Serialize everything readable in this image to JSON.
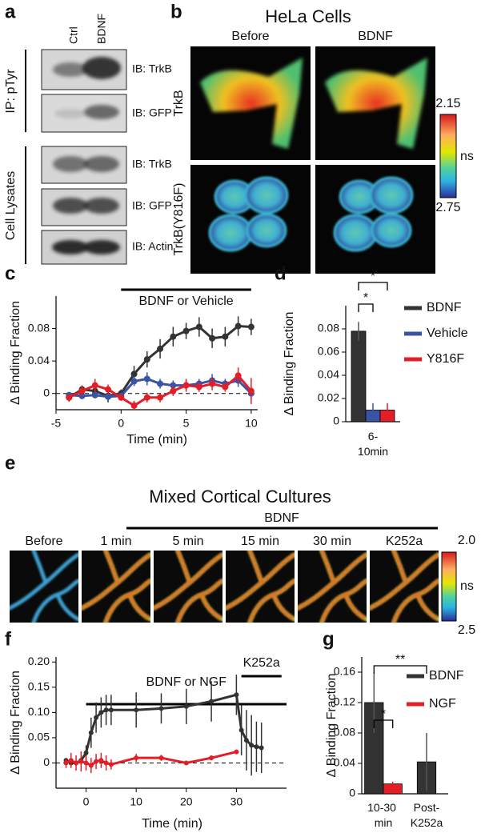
{
  "panel_labels": [
    "a",
    "b",
    "c",
    "d",
    "e",
    "f",
    "g"
  ],
  "blot": {
    "lanes": [
      "Ctrl",
      "BDNF"
    ],
    "groups": [
      "IP: pTyr",
      "Cell Lysates"
    ],
    "antibodies": [
      "IB: TrkB",
      "IB: GFP",
      "IB: TrkB",
      "IB: GFP",
      "IB: Actin"
    ]
  },
  "hela": {
    "title": "HeLa Cells",
    "conditions": [
      "Before",
      "BDNF"
    ],
    "constructs": [
      "TrkB",
      "TrkB(Y816F)"
    ],
    "scale": {
      "max": "2.15",
      "min": "2.75",
      "unit": "ns"
    }
  },
  "cortical": {
    "title": "Mixed Cortical Cultures",
    "treatment": "BDNF",
    "timepoints": [
      "Before",
      "1 min",
      "5 min",
      "15 min",
      "30 min",
      "K252a"
    ],
    "scale": {
      "max": "2.0",
      "min": "2.5",
      "unit": "ns"
    }
  },
  "chart_data": [
    {
      "type": "line",
      "xlabel": "Time (min)",
      "ylabel": "Δ Binding Fraction",
      "x": [
        -4,
        -3,
        -2,
        -1,
        0,
        1,
        2,
        3,
        4,
        5,
        6,
        7,
        8,
        9,
        10
      ],
      "xlim": [
        -5,
        10.5
      ],
      "xticks": [
        -5,
        0,
        5,
        10
      ],
      "ylim": [
        -0.02,
        0.12
      ],
      "yticks": [
        0,
        0.04,
        0.08
      ],
      "zero_line": true,
      "annotations": [
        {
          "text": "BDNF or Vehicle",
          "x": [
            0,
            10
          ]
        }
      ],
      "series": [
        {
          "color": "#333333",
          "values": [
            -0.005,
            0.005,
            0.003,
            -0.003,
            0,
            0.024,
            0.042,
            0.055,
            0.07,
            0.077,
            0.082,
            0.068,
            0.07,
            0.083,
            0.082
          ],
          "errors": [
            0.005,
            0.005,
            0.005,
            0.008,
            0.005,
            0.01,
            0.01,
            0.012,
            0.012,
            0.01,
            0.012,
            0.012,
            0.012,
            0.012,
            0.01
          ]
        },
        {
          "color": "#3a53a4",
          "values": [
            -0.002,
            -0.003,
            -0.002,
            -0.004,
            -0.003,
            0.015,
            0.018,
            0.012,
            0.01,
            0.01,
            0.012,
            0.016,
            0.012,
            0.016,
            0
          ],
          "errors": [
            0.004,
            0.004,
            0.004,
            0.004,
            0.004,
            0.006,
            0.008,
            0.006,
            0.006,
            0.006,
            0.006,
            0.008,
            0.006,
            0.008,
            0.006
          ]
        },
        {
          "color": "#e41e26",
          "values": [
            -0.005,
            0.003,
            0.01,
            0.005,
            -0.005,
            -0.015,
            -0.005,
            -0.005,
            0.003,
            0.01,
            0.008,
            0.012,
            0.008,
            0.022,
            0.003
          ],
          "errors": [
            0.004,
            0.006,
            0.008,
            0.006,
            0.004,
            0.006,
            0.006,
            0.006,
            0.006,
            0.008,
            0.006,
            0.008,
            0.006,
            0.01,
            0.016
          ]
        }
      ]
    },
    {
      "type": "bar",
      "ylabel": "Δ Binding Fraction",
      "categories": [
        "6-10min"
      ],
      "ylim": [
        0,
        0.1
      ],
      "yticks": [
        0,
        0.02,
        0.04,
        0.06,
        0.08
      ],
      "legend": "right",
      "series": [
        {
          "name": "BDNF",
          "color": "#333333",
          "values": [
            0.078
          ],
          "errors": [
            0.008
          ]
        },
        {
          "name": "Vehicle",
          "color": "#3a53a4",
          "values": [
            0.01
          ],
          "errors": [
            0.006
          ]
        },
        {
          "name": "Y816F",
          "color": "#e41e26",
          "values": [
            0.01
          ],
          "errors": [
            0.006
          ]
        }
      ],
      "significance": [
        {
          "label": "*",
          "between": [
            [
              0,
              0
            ],
            [
              0,
              1
            ]
          ]
        },
        {
          "label": "*",
          "between": [
            [
              0,
              0
            ],
            [
              0,
              2
            ]
          ]
        }
      ]
    },
    {
      "type": "line",
      "xlabel": "Time (min)",
      "ylabel": "Δ Binding Fraction",
      "x": [
        -4,
        -3,
        -2,
        -1,
        0,
        1,
        2,
        3,
        4,
        5,
        10,
        15,
        20,
        25,
        30,
        31,
        32,
        33,
        34,
        35
      ],
      "xlim": [
        -6,
        40
      ],
      "xticks": [
        0,
        10,
        20,
        30
      ],
      "ylim": [
        -0.05,
        0.21
      ],
      "yticks": [
        0,
        0.05,
        {
          "value": 0.1,
          "label": "0.10"
        },
        0.15,
        {
          "value": 0.2,
          "label": "0.20"
        }
      ],
      "zero_line": true,
      "annotations": [
        {
          "text": "BDNF or NGF",
          "x": [
            0,
            40
          ]
        },
        {
          "text": "K252a",
          "x": [
            31,
            39
          ]
        }
      ],
      "series": [
        {
          "color": "#333333",
          "values": [
            0.005,
            0,
            0,
            0.005,
            0.02,
            0.06,
            0.09,
            0.1,
            0.105,
            0.105,
            0.105,
            0.108,
            0.112,
            0.122,
            0.135,
            0.065,
            0.045,
            0.035,
            0.032,
            0.03
          ],
          "errors": [
            0.005,
            0.005,
            0.005,
            0.005,
            0.015,
            0.03,
            0.03,
            0.03,
            0.03,
            0.03,
            0.035,
            0.03,
            0.035,
            0.04,
            0.04,
            0.05,
            0.06,
            0.06,
            0.05,
            0.05
          ]
        },
        {
          "color": "#e41e26",
          "values": [
            0,
            0.005,
            0,
            0.003,
            0,
            -0.005,
            0.003,
            0.005,
            0,
            -0.003,
            0.01,
            0.01,
            0,
            0.01,
            0.022,
            null,
            null,
            null,
            null,
            null
          ],
          "errors": [
            0.01,
            0.015,
            0.015,
            0.02,
            0.015,
            0.015,
            0.015,
            0.015,
            0.015,
            0.01,
            0.008,
            0.006,
            0.004,
            0.005,
            0.004,
            null,
            null,
            null,
            null,
            null
          ]
        }
      ]
    },
    {
      "type": "bar",
      "ylabel": "Δ Binding Fraction",
      "categories": [
        "10-30 min",
        "Post-K252a"
      ],
      "ylim": [
        0,
        0.18
      ],
      "yticks": [
        0,
        0.04,
        0.08,
        0.12,
        0.16
      ],
      "legend": "right",
      "series": [
        {
          "name": "BDNF",
          "color": "#333333",
          "values": [
            0.12,
            0.042
          ],
          "errors": [
            0.04,
            0.038
          ]
        },
        {
          "name": "NGF",
          "color": "#e41e26",
          "values": [
            0.013,
            null
          ],
          "errors": [
            0.003,
            null
          ]
        }
      ],
      "significance": [
        {
          "label": "*",
          "between": [
            [
              0,
              0
            ],
            [
              0,
              1
            ]
          ]
        },
        {
          "label": "**",
          "between": [
            [
              0,
              0
            ],
            [
              1,
              0
            ]
          ]
        }
      ]
    }
  ]
}
